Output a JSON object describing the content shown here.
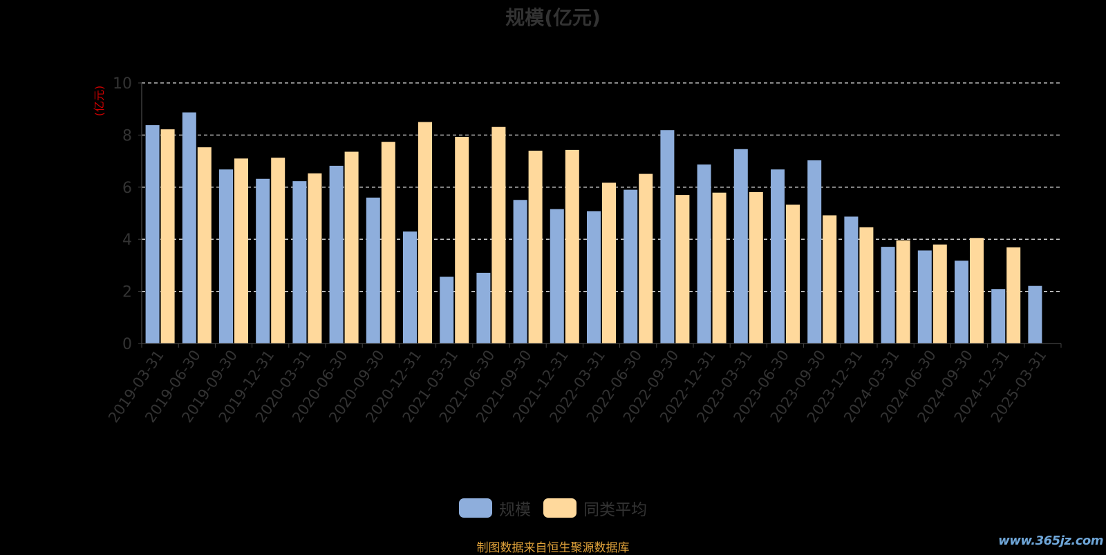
{
  "title": "规模(亿元)",
  "footer": "制图数据来自恒生聚源数据库",
  "watermark": "www.365jz.com",
  "colors": {
    "background": "#000000",
    "series1": "#8eaedc",
    "series2": "#ffd99c",
    "axis_text": "#333333",
    "grid": "#dddddd",
    "axis_line": "#444444",
    "ylabel": "#cc0000",
    "footer": "#e0a23a"
  },
  "chart_data": {
    "type": "bar",
    "title": "规模(亿元)",
    "ylabel": "(亿元)",
    "xlabel": "",
    "ylim": [
      0,
      10
    ],
    "yticks": [
      0,
      2,
      4,
      6,
      8,
      10
    ],
    "grid": true,
    "legend_position": "bottom",
    "categories": [
      "2019-03-31",
      "2019-06-30",
      "2019-09-30",
      "2019-12-31",
      "2020-03-31",
      "2020-06-30",
      "2020-09-30",
      "2020-12-31",
      "2021-03-31",
      "2021-06-30",
      "2021-09-30",
      "2021-12-31",
      "2022-03-31",
      "2022-06-30",
      "2022-09-30",
      "2022-12-31",
      "2023-03-31",
      "2023-06-30",
      "2023-09-30",
      "2023-12-31",
      "2024-03-31",
      "2024-06-30",
      "2024-09-30",
      "2024-12-31",
      "2025-03-31"
    ],
    "series": [
      {
        "name": "规模",
        "values": [
          8.38,
          8.87,
          6.68,
          6.32,
          6.23,
          6.82,
          5.6,
          4.3,
          2.56,
          2.71,
          5.51,
          5.16,
          5.08,
          5.9,
          8.19,
          6.87,
          7.46,
          6.68,
          7.03,
          4.87,
          3.71,
          3.57,
          3.18,
          2.09,
          2.21
        ]
      },
      {
        "name": "同类平均",
        "values": [
          8.22,
          7.53,
          7.1,
          7.13,
          6.53,
          7.36,
          7.74,
          8.5,
          7.93,
          8.31,
          7.4,
          7.43,
          6.17,
          6.51,
          5.7,
          5.79,
          5.81,
          5.33,
          4.92,
          4.46,
          3.96,
          3.8,
          4.05,
          3.69,
          null
        ]
      }
    ]
  }
}
